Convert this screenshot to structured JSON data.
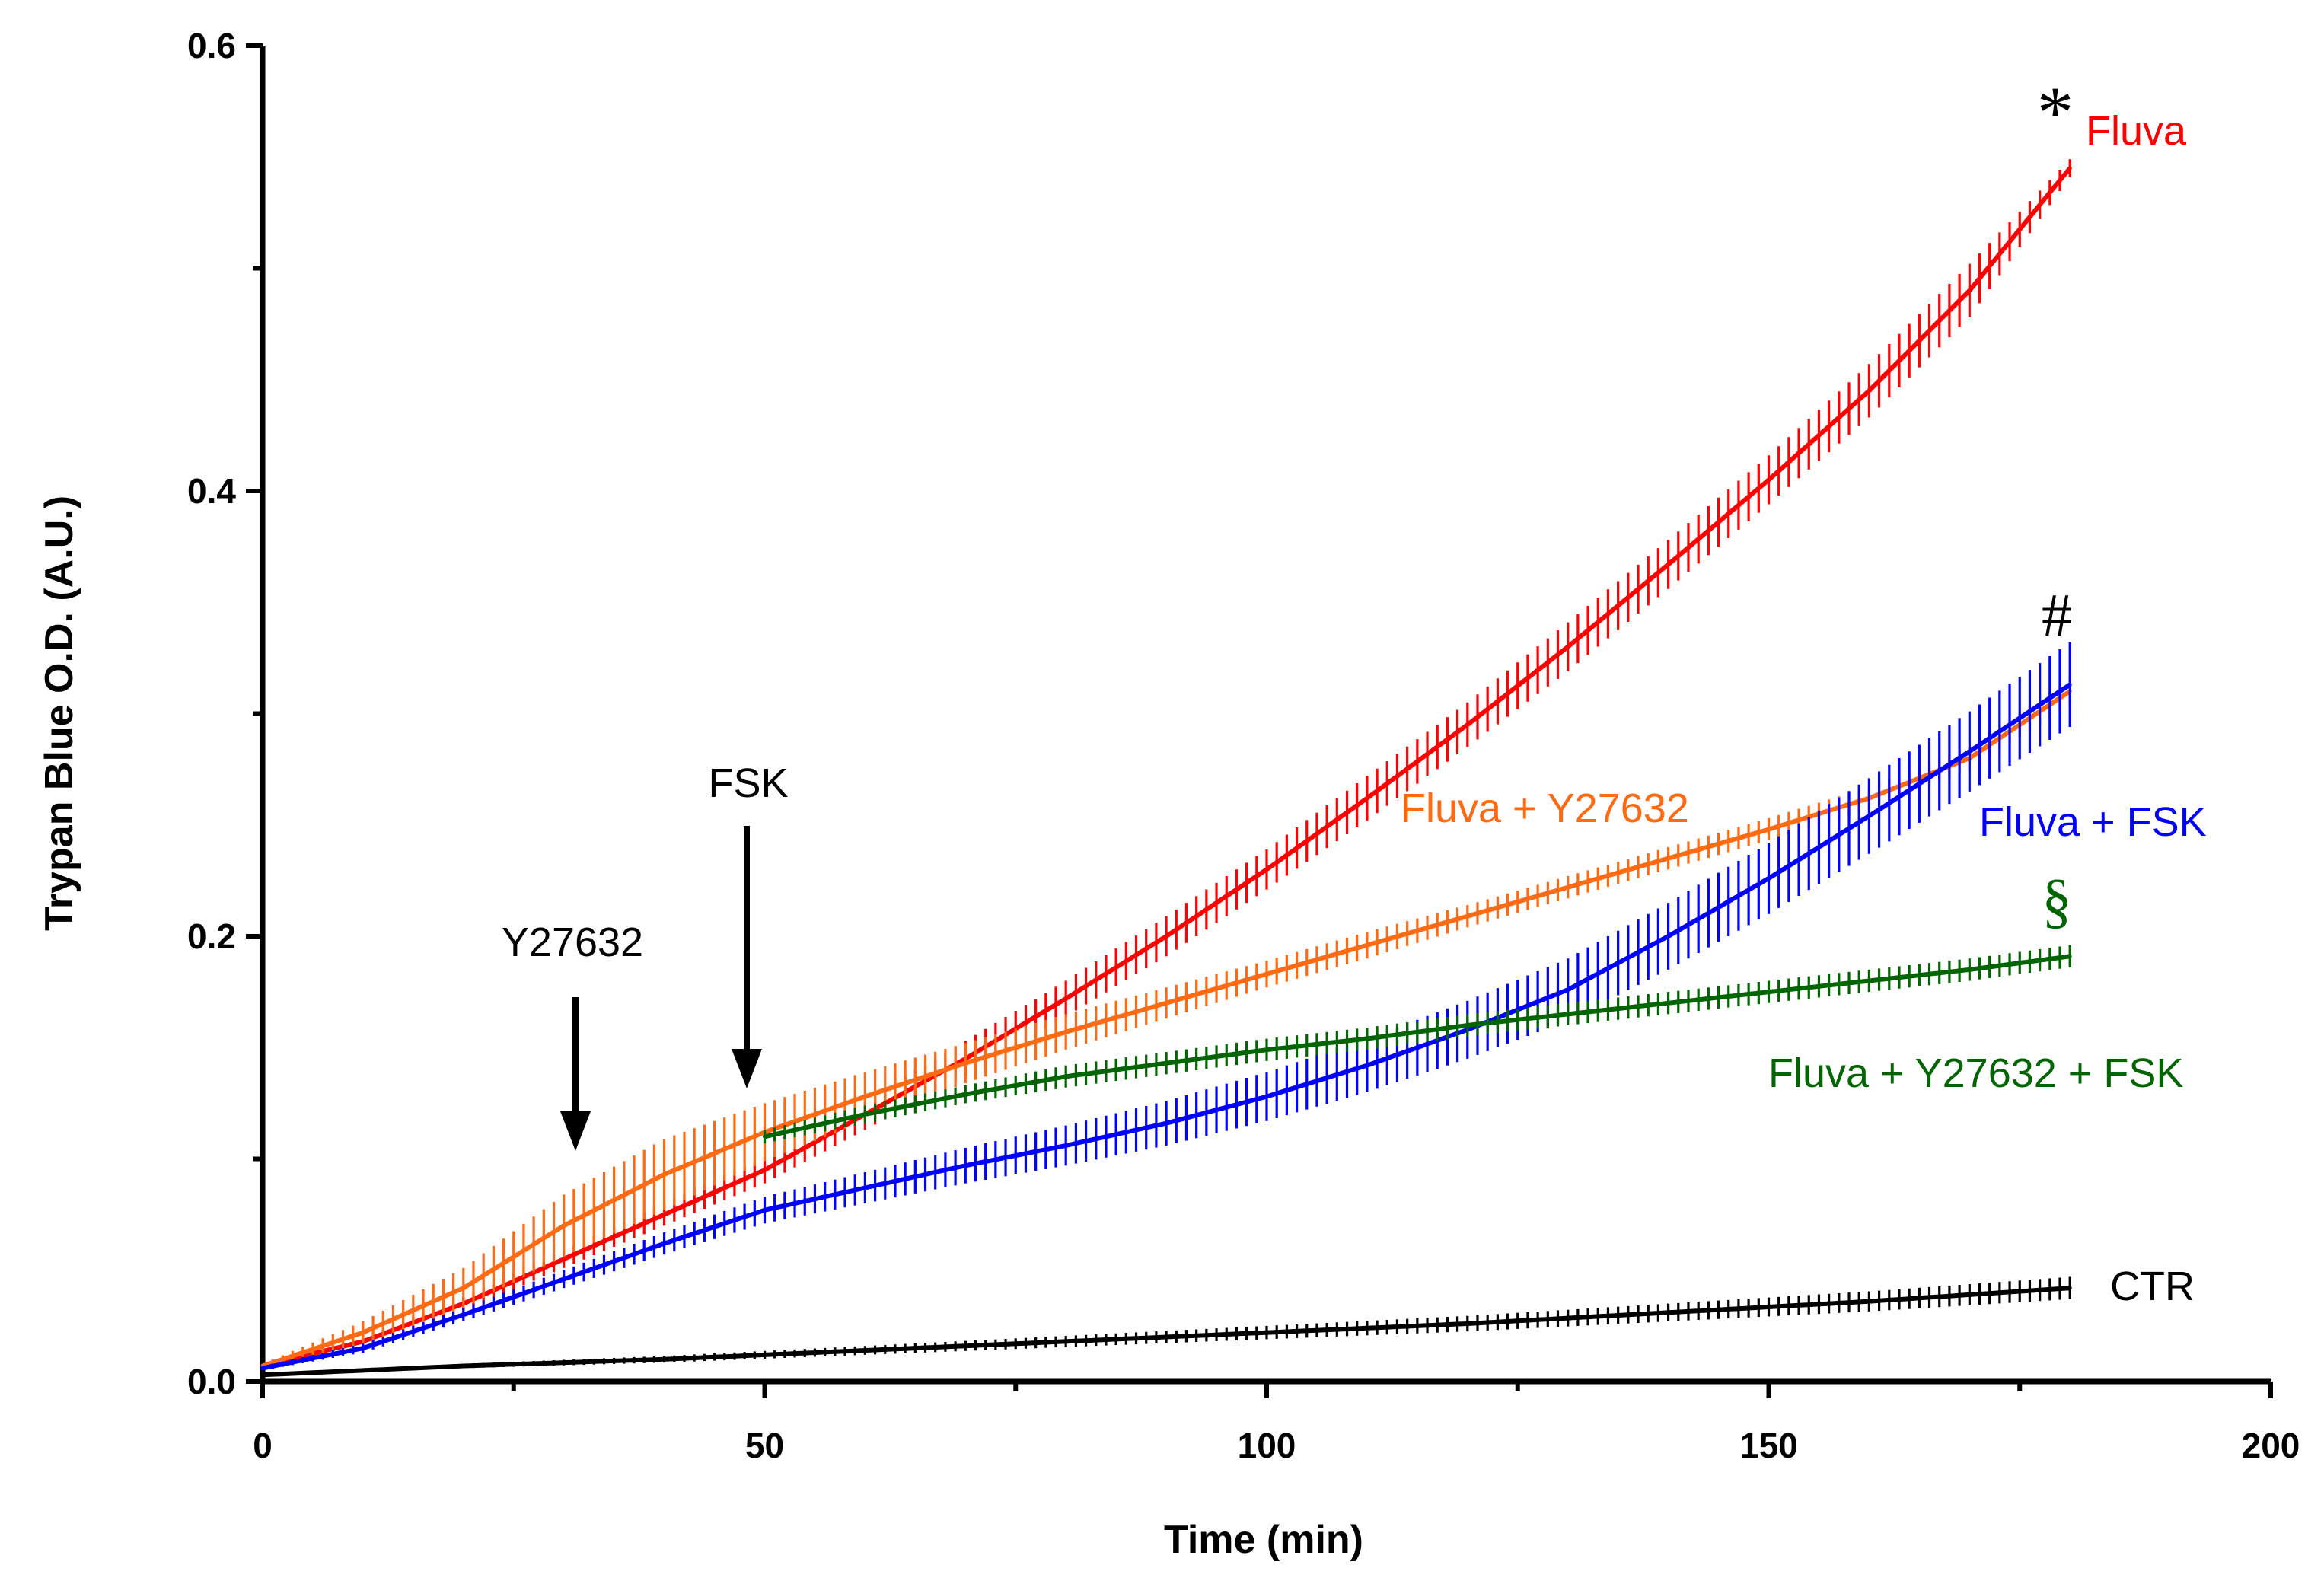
{
  "chart_data": {
    "type": "line",
    "xlabel": "Time (min)",
    "ylabel": "Trypan Blue O.D. (A.U.)",
    "xlim": [
      0,
      200
    ],
    "ylim": [
      0,
      0.6
    ],
    "x_ticks": [
      0,
      50,
      100,
      150,
      200
    ],
    "x_tick_labels": [
      "0",
      "50",
      "100",
      "150",
      "200"
    ],
    "y_ticks": [
      0,
      0.2,
      0.4,
      0.6
    ],
    "y_tick_labels": [
      "0.0",
      "0.2",
      "0.4",
      "0.6"
    ],
    "grid": false,
    "series": [
      {
        "name": "Fluva",
        "color": "#ff0000",
        "x": [
          0,
          10,
          20,
          30,
          40,
          50,
          60,
          70,
          80,
          90,
          100,
          110,
          120,
          130,
          140,
          150,
          160,
          170,
          180
        ],
        "y": [
          0.007,
          0.018,
          0.035,
          0.055,
          0.075,
          0.095,
          0.12,
          0.145,
          0.172,
          0.2,
          0.23,
          0.262,
          0.295,
          0.33,
          0.367,
          0.405,
          0.445,
          0.49,
          0.545
        ],
        "err": [
          0.001,
          0.002,
          0.003,
          0.004,
          0.005,
          0.006,
          0.007,
          0.008,
          0.008,
          0.009,
          0.009,
          0.01,
          0.01,
          0.011,
          0.011,
          0.011,
          0.012,
          0.012,
          0.004
        ]
      },
      {
        "name": "Fluva + Y27632",
        "color": "#ff6a13",
        "x": [
          0,
          10,
          20,
          30,
          40,
          50,
          60,
          70,
          80,
          90,
          100,
          110,
          120,
          130,
          140,
          150,
          160,
          170,
          180
        ],
        "y": [
          0.007,
          0.022,
          0.042,
          0.07,
          0.093,
          0.112,
          0.128,
          0.143,
          0.157,
          0.17,
          0.183,
          0.196,
          0.209,
          0.222,
          0.235,
          0.248,
          0.262,
          0.28,
          0.31
        ],
        "err": [
          0.001,
          0.005,
          0.009,
          0.014,
          0.016,
          0.013,
          0.011,
          0.009,
          0.008,
          0.007,
          0.006,
          0.006,
          0.005,
          0.005,
          0.005,
          0.005,
          0.005,
          0.005,
          0.006
        ]
      },
      {
        "name": "Fluva + FSK",
        "color": "#0000ff",
        "x": [
          0,
          10,
          20,
          30,
          40,
          50,
          60,
          70,
          80,
          90,
          100,
          110,
          120,
          130,
          140,
          150,
          160,
          170,
          180
        ],
        "y": [
          0.006,
          0.015,
          0.03,
          0.046,
          0.062,
          0.077,
          0.087,
          0.097,
          0.106,
          0.116,
          0.128,
          0.142,
          0.158,
          0.176,
          0.2,
          0.226,
          0.254,
          0.283,
          0.313
        ],
        "err": [
          0.001,
          0.002,
          0.003,
          0.004,
          0.005,
          0.006,
          0.007,
          0.008,
          0.009,
          0.01,
          0.011,
          0.012,
          0.013,
          0.014,
          0.015,
          0.016,
          0.017,
          0.018,
          0.019
        ]
      },
      {
        "name": "Fluva + Y27632 + FSK",
        "color": "#006400",
        "x": [
          50,
          60,
          70,
          80,
          90,
          100,
          110,
          120,
          130,
          140,
          150,
          160,
          170,
          180
        ],
        "y": [
          0.11,
          0.12,
          0.129,
          0.137,
          0.143,
          0.149,
          0.154,
          0.16,
          0.165,
          0.17,
          0.175,
          0.18,
          0.185,
          0.191
        ],
        "err": [
          0.003,
          0.004,
          0.004,
          0.005,
          0.005,
          0.005,
          0.005,
          0.005,
          0.005,
          0.005,
          0.005,
          0.005,
          0.005,
          0.005
        ]
      },
      {
        "name": "CTR",
        "color": "#000000",
        "x": [
          0,
          20,
          40,
          60,
          80,
          100,
          120,
          140,
          160,
          180
        ],
        "y": [
          0.003,
          0.007,
          0.01,
          0.014,
          0.018,
          0.022,
          0.026,
          0.031,
          0.036,
          0.042
        ],
        "err": [
          0.0005,
          0.001,
          0.0015,
          0.002,
          0.0025,
          0.003,
          0.0035,
          0.004,
          0.0045,
          0.005
        ]
      }
    ],
    "labels": {
      "fluva": "Fluva",
      "fluva_y": "Fluva + Y27632",
      "fluva_fsk": "Fluva + FSK",
      "fluva_y_fsk": "Fluva + Y27632 + FSK",
      "ctr": "CTR"
    },
    "annotations": {
      "y27632": {
        "text": "Y27632",
        "time": 31
      },
      "fsk": {
        "text": "FSK",
        "time": 48
      }
    },
    "significance": {
      "star": {
        "symbol": "*",
        "color": "#000000"
      },
      "hash": {
        "symbol": "#",
        "color": "#000000"
      },
      "section": {
        "symbol": "§",
        "color": "#006400"
      }
    }
  }
}
